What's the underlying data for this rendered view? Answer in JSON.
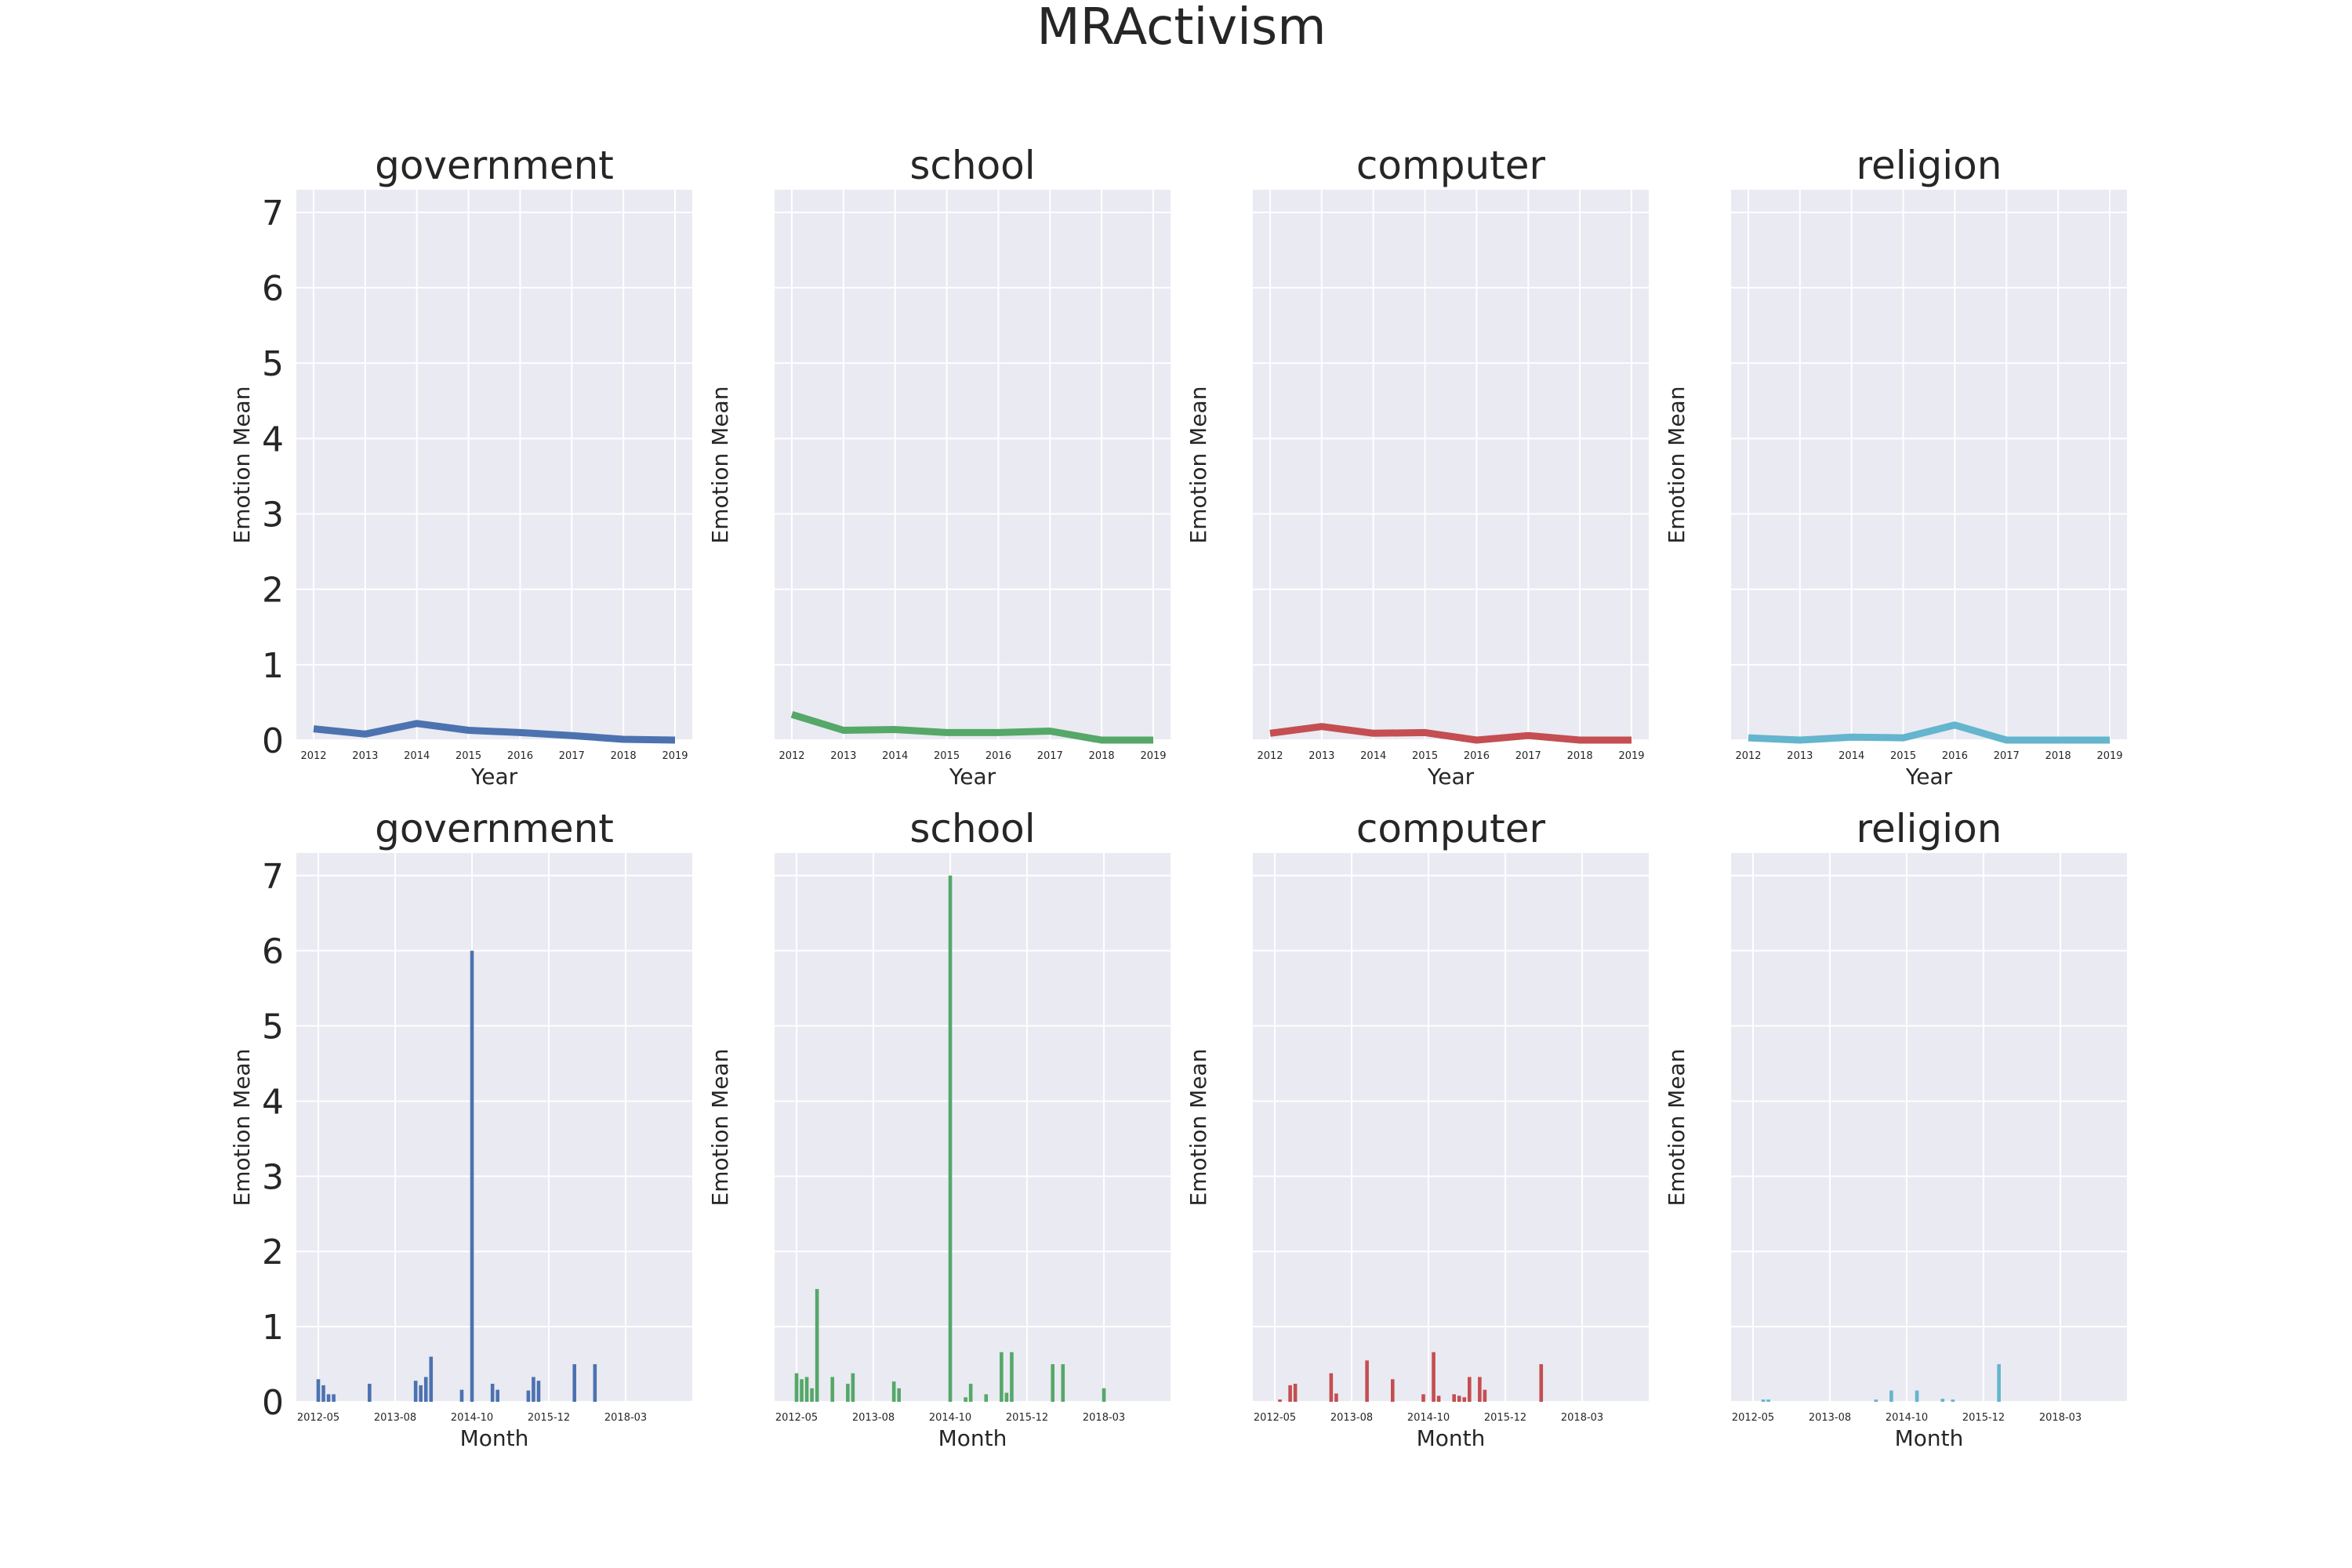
{
  "figure_title": "MRActivism",
  "colors": {
    "government": "#4c72b0",
    "school": "#55a868",
    "computer": "#c44e52",
    "religion": "#64b5cd"
  },
  "chart_data": [
    {
      "type": "line",
      "title": "government",
      "xlabel": "Year",
      "ylabel": "Emotion Mean",
      "ylim": [
        0,
        7.3
      ],
      "yticks": [
        "0",
        "1",
        "2",
        "3",
        "4",
        "5",
        "6",
        "7"
      ],
      "x": [
        "2012",
        "2013",
        "2014",
        "2015",
        "2016",
        "2017",
        "2018",
        "2019"
      ],
      "values": [
        0.15,
        0.08,
        0.22,
        0.13,
        0.1,
        0.06,
        0.01,
        0.0
      ],
      "color_key": "government",
      "grid": true
    },
    {
      "type": "line",
      "title": "school",
      "xlabel": "Year",
      "ylabel": "Emotion Mean",
      "ylim": [
        0,
        7.3
      ],
      "x": [
        "2012",
        "2013",
        "2014",
        "2015",
        "2016",
        "2017",
        "2018",
        "2019"
      ],
      "values": [
        0.34,
        0.13,
        0.14,
        0.1,
        0.1,
        0.12,
        0.0,
        0.0
      ],
      "color_key": "school",
      "grid": true
    },
    {
      "type": "line",
      "title": "computer",
      "xlabel": "Year",
      "ylabel": "Emotion Mean",
      "ylim": [
        0,
        7.3
      ],
      "x": [
        "2012",
        "2013",
        "2014",
        "2015",
        "2016",
        "2017",
        "2018",
        "2019"
      ],
      "values": [
        0.09,
        0.18,
        0.09,
        0.1,
        0.0,
        0.06,
        0.0,
        0.0
      ],
      "color_key": "computer",
      "grid": true
    },
    {
      "type": "line",
      "title": "religion",
      "xlabel": "Year",
      "ylabel": "Emotion Mean",
      "ylim": [
        0,
        7.3
      ],
      "x": [
        "2012",
        "2013",
        "2014",
        "2015",
        "2016",
        "2017",
        "2018",
        "2019"
      ],
      "values": [
        0.03,
        0.0,
        0.04,
        0.03,
        0.2,
        0.0,
        0.0,
        0.0
      ],
      "color_key": "religion",
      "grid": true
    },
    {
      "type": "bar",
      "title": "government",
      "xlabel": "Month",
      "ylabel": "Emotion Mean",
      "ylim": [
        0,
        7.3
      ],
      "yticks": [
        "0",
        "1",
        "2",
        "3",
        "4",
        "5",
        "6",
        "7"
      ],
      "xticks": [
        "2012-05",
        "2013-08",
        "2014-10",
        "2015-12",
        "2018-03"
      ],
      "xticks_pos": [
        0,
        15,
        30,
        45,
        60
      ],
      "x_max": 73,
      "bars": [
        [
          0,
          0.3
        ],
        [
          1,
          0.22
        ],
        [
          2,
          0.1
        ],
        [
          3,
          0.1
        ],
        [
          10,
          0.24
        ],
        [
          19,
          0.28
        ],
        [
          20,
          0.22
        ],
        [
          21,
          0.33
        ],
        [
          22,
          0.6
        ],
        [
          28,
          0.16
        ],
        [
          30,
          6.0
        ],
        [
          34,
          0.24
        ],
        [
          35,
          0.16
        ],
        [
          41,
          0.15
        ],
        [
          42,
          0.33
        ],
        [
          43,
          0.28
        ],
        [
          50,
          0.5
        ],
        [
          54,
          0.5
        ]
      ],
      "color_key": "government",
      "grid": true
    },
    {
      "type": "bar",
      "title": "school",
      "xlabel": "Month",
      "ylabel": "Emotion Mean",
      "ylim": [
        0,
        7.3
      ],
      "xticks": [
        "2012-05",
        "2013-08",
        "2014-10",
        "2015-12",
        "2018-03"
      ],
      "xticks_pos": [
        0,
        15,
        30,
        45,
        60
      ],
      "x_max": 73,
      "bars": [
        [
          0,
          0.38
        ],
        [
          1,
          0.3
        ],
        [
          2,
          0.33
        ],
        [
          3,
          0.18
        ],
        [
          4,
          1.5
        ],
        [
          7,
          0.33
        ],
        [
          10,
          0.24
        ],
        [
          11,
          0.38
        ],
        [
          19,
          0.27
        ],
        [
          20,
          0.18
        ],
        [
          30,
          7.0
        ],
        [
          33,
          0.06
        ],
        [
          34,
          0.24
        ],
        [
          37,
          0.1
        ],
        [
          40,
          0.66
        ],
        [
          41,
          0.12
        ],
        [
          42,
          0.66
        ],
        [
          50,
          0.5
        ],
        [
          52,
          0.5
        ],
        [
          60,
          0.18
        ]
      ],
      "color_key": "school",
      "grid": true
    },
    {
      "type": "bar",
      "title": "computer",
      "xlabel": "Month",
      "ylabel": "Emotion Mean",
      "ylim": [
        0,
        7.3
      ],
      "xticks": [
        "2012-05",
        "2013-08",
        "2014-10",
        "2015-12",
        "2018-03"
      ],
      "xticks_pos": [
        0,
        15,
        30,
        45,
        60
      ],
      "x_max": 73,
      "bars": [
        [
          1,
          0.03
        ],
        [
          3,
          0.22
        ],
        [
          4,
          0.24
        ],
        [
          11,
          0.38
        ],
        [
          12,
          0.11
        ],
        [
          18,
          0.55
        ],
        [
          23,
          0.3
        ],
        [
          29,
          0.1
        ],
        [
          31,
          0.66
        ],
        [
          32,
          0.08
        ],
        [
          35,
          0.1
        ],
        [
          36,
          0.08
        ],
        [
          37,
          0.06
        ],
        [
          38,
          0.33
        ],
        [
          40,
          0.33
        ],
        [
          41,
          0.16
        ],
        [
          52,
          0.5
        ]
      ],
      "color_key": "computer",
      "grid": true
    },
    {
      "type": "bar",
      "title": "religion",
      "xlabel": "Month",
      "ylabel": "Emotion Mean",
      "ylim": [
        0,
        7.3
      ],
      "xticks": [
        "2012-05",
        "2013-08",
        "2014-10",
        "2015-12",
        "2018-03"
      ],
      "xticks_pos": [
        0,
        15,
        30,
        45,
        60
      ],
      "x_max": 73,
      "bars": [
        [
          2,
          0.03
        ],
        [
          3,
          0.03
        ],
        [
          24,
          0.03
        ],
        [
          27,
          0.15
        ],
        [
          32,
          0.15
        ],
        [
          37,
          0.04
        ],
        [
          39,
          0.03
        ],
        [
          48,
          0.5
        ]
      ],
      "color_key": "religion",
      "grid": true
    }
  ]
}
